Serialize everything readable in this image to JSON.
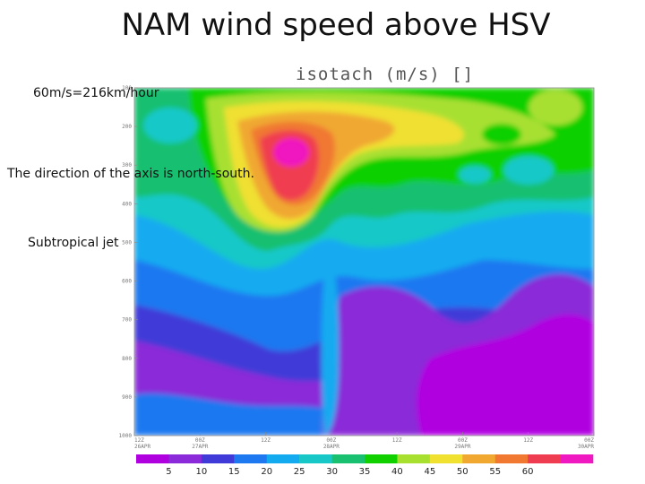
{
  "slide": {
    "title": "NAM wind speed above HSV",
    "annotations": [
      "60m/s=216km/hour",
      "The direction of the axis is north-south.",
      "Subtropical jet"
    ]
  },
  "chart_data": {
    "type": "heatmap",
    "title": "isotach (m/s) []",
    "y_ticks": [
      "100",
      "200",
      "300",
      "400",
      "500",
      "600",
      "700",
      "800",
      "900",
      "1000"
    ],
    "y_range": [
      100,
      1000
    ],
    "y_scale": "linear-inverted",
    "x_ticks": [
      [
        "12Z",
        "26APR"
      ],
      [
        "00Z",
        "27APR"
      ],
      [
        "12Z",
        ""
      ],
      [
        "00Z",
        "28APR"
      ],
      [
        "12Z",
        ""
      ],
      [
        "00Z",
        "29APR"
      ],
      [
        "12Z",
        ""
      ],
      [
        "00Z",
        "30APR"
      ]
    ],
    "colorbar": {
      "labels": [
        "5",
        "10",
        "15",
        "20",
        "25",
        "30",
        "35",
        "40",
        "45",
        "50",
        "55",
        "60"
      ],
      "colors": [
        "#b000e0",
        "#8a2ad8",
        "#3f3ad8",
        "#1e78f0",
        "#14aaf0",
        "#18c8c8",
        "#18c070",
        "#10d000",
        "#a8e030",
        "#f0e030",
        "#f0a830",
        "#f07830",
        "#f03c50",
        "#f018c0"
      ]
    },
    "grid": false,
    "legend": "bottom"
  }
}
